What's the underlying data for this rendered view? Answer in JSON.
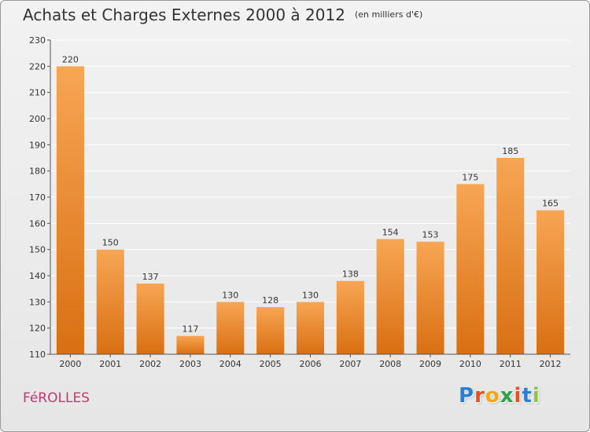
{
  "header": {
    "title": "Achats et Charges Externes 2000 à 2012",
    "subtitle": "(en milliers d'€)"
  },
  "footer": {
    "commune": "FéROLLES",
    "brand_letters": [
      "P",
      "r",
      "o",
      "x",
      "i",
      "t",
      "i"
    ],
    "brand_colors": [
      "#2a7fd4",
      "#e94e1b",
      "#f3a51b",
      "#2ea34a",
      "#e94e1b",
      "#2a7fd4",
      "#8cc63e"
    ]
  },
  "colors": {
    "bar_top": "#f7a654",
    "bar_bottom": "#d96f12",
    "grid": "#ffffff",
    "axis": "#555555",
    "title_text": "#333333",
    "commune_text": "#c03a6e"
  },
  "chart_data": {
    "type": "bar",
    "title": "Achats et Charges Externes 2000 à 2012",
    "subtitle": "(en milliers d'€)",
    "xlabel": "",
    "ylabel": "",
    "categories": [
      "2000",
      "2001",
      "2002",
      "2003",
      "2004",
      "2005",
      "2006",
      "2007",
      "2008",
      "2009",
      "2010",
      "2011",
      "2012"
    ],
    "values": [
      220,
      150,
      137,
      117,
      130,
      128,
      130,
      138,
      154,
      153,
      175,
      185,
      165
    ],
    "ylim": [
      110,
      230
    ],
    "yticks": [
      110,
      120,
      130,
      140,
      150,
      160,
      170,
      180,
      190,
      200,
      210,
      220,
      230
    ],
    "grid": true,
    "data_labels": true
  }
}
